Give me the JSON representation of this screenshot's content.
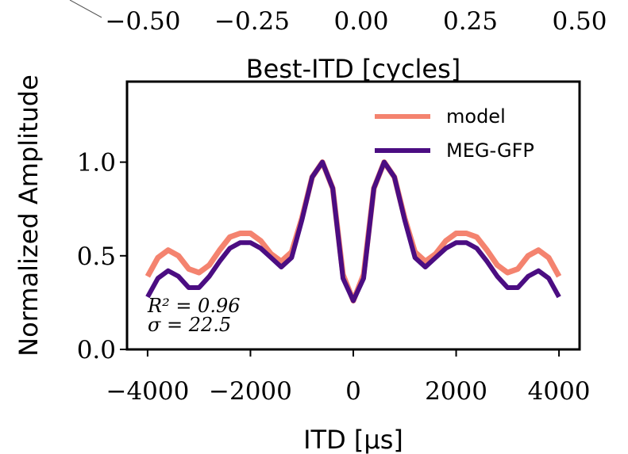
{
  "chart_data": {
    "type": "line",
    "x": [
      -4000,
      -3800,
      -3600,
      -3400,
      -3200,
      -3000,
      -2800,
      -2600,
      -2400,
      -2200,
      -2000,
      -1800,
      -1600,
      -1400,
      -1200,
      -1000,
      -800,
      -600,
      -400,
      -200,
      0,
      200,
      400,
      600,
      800,
      1000,
      1200,
      1400,
      1600,
      1800,
      2000,
      2200,
      2400,
      2600,
      2800,
      3000,
      3200,
      3400,
      3600,
      3800,
      4000
    ],
    "series": [
      {
        "name": "model",
        "color": "#f4836f",
        "values": [
          0.39,
          0.49,
          0.53,
          0.5,
          0.43,
          0.41,
          0.45,
          0.53,
          0.6,
          0.62,
          0.62,
          0.58,
          0.51,
          0.47,
          0.52,
          0.7,
          0.92,
          1.0,
          0.86,
          0.4,
          0.26,
          0.4,
          0.86,
          1.0,
          0.92,
          0.7,
          0.52,
          0.47,
          0.51,
          0.58,
          0.62,
          0.62,
          0.6,
          0.53,
          0.45,
          0.41,
          0.43,
          0.5,
          0.53,
          0.49,
          0.39
        ]
      },
      {
        "name": "MEG-GFP",
        "color": "#4b0d82",
        "values": [
          0.28,
          0.38,
          0.42,
          0.39,
          0.33,
          0.33,
          0.39,
          0.47,
          0.54,
          0.57,
          0.57,
          0.54,
          0.49,
          0.44,
          0.49,
          0.69,
          0.92,
          1.0,
          0.86,
          0.38,
          0.26,
          0.38,
          0.86,
          1.0,
          0.92,
          0.69,
          0.49,
          0.44,
          0.49,
          0.54,
          0.57,
          0.57,
          0.54,
          0.47,
          0.39,
          0.33,
          0.33,
          0.39,
          0.42,
          0.38,
          0.28
        ]
      }
    ],
    "xlim": [
      -4400,
      4400
    ],
    "ylim": [
      0.0,
      1.43
    ],
    "xticks": [
      -4000,
      -2000,
      0,
      2000,
      4000
    ],
    "xtick_labels": [
      "−4000",
      "−2000",
      "0",
      "2000",
      "4000"
    ],
    "yticks": [
      0.0,
      0.5,
      1.0
    ],
    "ytick_labels": [
      "0.0",
      "0.5",
      "1.0"
    ],
    "xlabel": "ITD [μs]",
    "ylabel": "Normalized Amplitude",
    "top_axis": {
      "label": "Best-ITD [cycles]",
      "ticks": [
        -0.5,
        -0.25,
        0.0,
        0.25,
        0.5
      ],
      "tick_labels": [
        "−0.50",
        "−0.25",
        "0.00",
        "0.25",
        "0.50"
      ]
    },
    "legend_position": "top-right",
    "annotations": {
      "r2": "R² = 0.96",
      "sigma": "σ = 22.5"
    }
  }
}
